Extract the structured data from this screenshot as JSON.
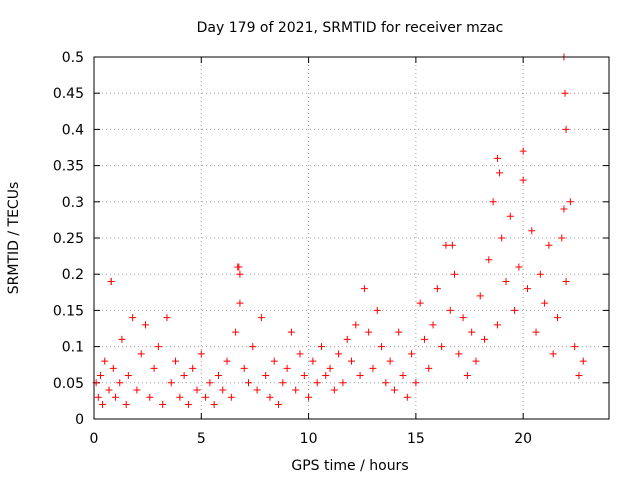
{
  "chart_data": {
    "type": "scatter",
    "title": "Day 179 of 2021, SRMTID for receiver mzac",
    "xlabel": "GPS time / hours",
    "ylabel": "SRMTID / TECUs",
    "xlim": [
      0,
      24
    ],
    "ylim": [
      0,
      0.5
    ],
    "grid": true,
    "marker": "+",
    "color": "#ff0000",
    "xticks": [
      0,
      5,
      10,
      15,
      20
    ],
    "xtick_labels": [
      "0",
      "5",
      "10",
      "15",
      "20"
    ],
    "yticks": [
      0,
      0.05,
      0.1,
      0.15,
      0.2,
      0.25,
      0.3,
      0.35,
      0.4,
      0.45,
      0.5
    ],
    "ytick_labels": [
      "0",
      "0.05",
      "0.1",
      "0.15",
      "0.2",
      "0.25",
      "0.3",
      "0.35",
      "0.4",
      "0.45",
      "0.5"
    ],
    "series": [
      {
        "name": "SRMTID",
        "x": [
          0.1,
          0.2,
          0.3,
          0.4,
          0.5,
          0.7,
          0.8,
          0.9,
          1.0,
          1.2,
          1.3,
          1.5,
          1.6,
          1.8,
          2.0,
          2.2,
          2.4,
          2.6,
          2.8,
          3.0,
          3.2,
          3.4,
          3.6,
          3.8,
          4.0,
          4.2,
          4.4,
          4.6,
          4.8,
          5.0,
          5.2,
          5.4,
          5.6,
          5.8,
          6.0,
          6.2,
          6.4,
          6.6,
          6.7,
          6.8,
          7.0,
          7.2,
          7.4,
          7.6,
          7.8,
          8.0,
          8.2,
          8.4,
          8.6,
          8.8,
          9.0,
          9.2,
          9.4,
          9.6,
          9.8,
          10.0,
          10.2,
          10.4,
          10.6,
          10.8,
          11.0,
          11.2,
          11.4,
          11.6,
          11.8,
          12.0,
          12.2,
          12.4,
          12.6,
          12.8,
          13.0,
          13.2,
          13.4,
          13.6,
          13.8,
          14.0,
          14.2,
          14.4,
          14.6,
          14.8,
          15.0,
          15.2,
          15.4,
          15.6,
          15.8,
          16.0,
          16.2,
          16.4,
          16.6,
          16.8,
          17.0,
          17.2,
          17.4,
          17.6,
          17.8,
          18.0,
          18.2,
          18.4,
          18.6,
          18.8,
          19.0,
          19.2,
          19.4,
          19.6,
          19.8,
          20.0,
          20.2,
          20.4,
          20.6,
          20.8,
          21.0,
          21.2,
          21.4,
          21.6,
          21.8,
          22.0,
          22.2,
          22.4,
          22.6,
          22.8,
          0.8,
          6.8,
          6.75,
          16.7,
          18.8,
          18.9,
          20.0,
          21.9,
          21.95,
          22.0,
          21.9
        ],
        "y": [
          0.05,
          0.03,
          0.06,
          0.02,
          0.08,
          0.04,
          0.19,
          0.07,
          0.03,
          0.05,
          0.11,
          0.02,
          0.06,
          0.14,
          0.04,
          0.09,
          0.13,
          0.03,
          0.07,
          0.1,
          0.02,
          0.14,
          0.05,
          0.08,
          0.03,
          0.06,
          0.02,
          0.07,
          0.04,
          0.09,
          0.03,
          0.05,
          0.02,
          0.06,
          0.04,
          0.08,
          0.03,
          0.12,
          0.21,
          0.16,
          0.07,
          0.05,
          0.1,
          0.04,
          0.14,
          0.06,
          0.03,
          0.08,
          0.02,
          0.05,
          0.07,
          0.12,
          0.04,
          0.09,
          0.06,
          0.03,
          0.08,
          0.05,
          0.1,
          0.06,
          0.07,
          0.04,
          0.09,
          0.05,
          0.11,
          0.08,
          0.13,
          0.06,
          0.18,
          0.12,
          0.07,
          0.15,
          0.1,
          0.05,
          0.08,
          0.04,
          0.12,
          0.06,
          0.03,
          0.09,
          0.05,
          0.16,
          0.11,
          0.07,
          0.13,
          0.18,
          0.1,
          0.24,
          0.15,
          0.2,
          0.09,
          0.14,
          0.06,
          0.12,
          0.08,
          0.17,
          0.11,
          0.22,
          0.3,
          0.13,
          0.25,
          0.19,
          0.28,
          0.15,
          0.21,
          0.33,
          0.18,
          0.26,
          0.12,
          0.2,
          0.16,
          0.24,
          0.09,
          0.14,
          0.25,
          0.19,
          0.3,
          0.1,
          0.06,
          0.08,
          0.19,
          0.2,
          0.21,
          0.24,
          0.36,
          0.34,
          0.37,
          0.5,
          0.45,
          0.4,
          0.29
        ]
      }
    ]
  }
}
